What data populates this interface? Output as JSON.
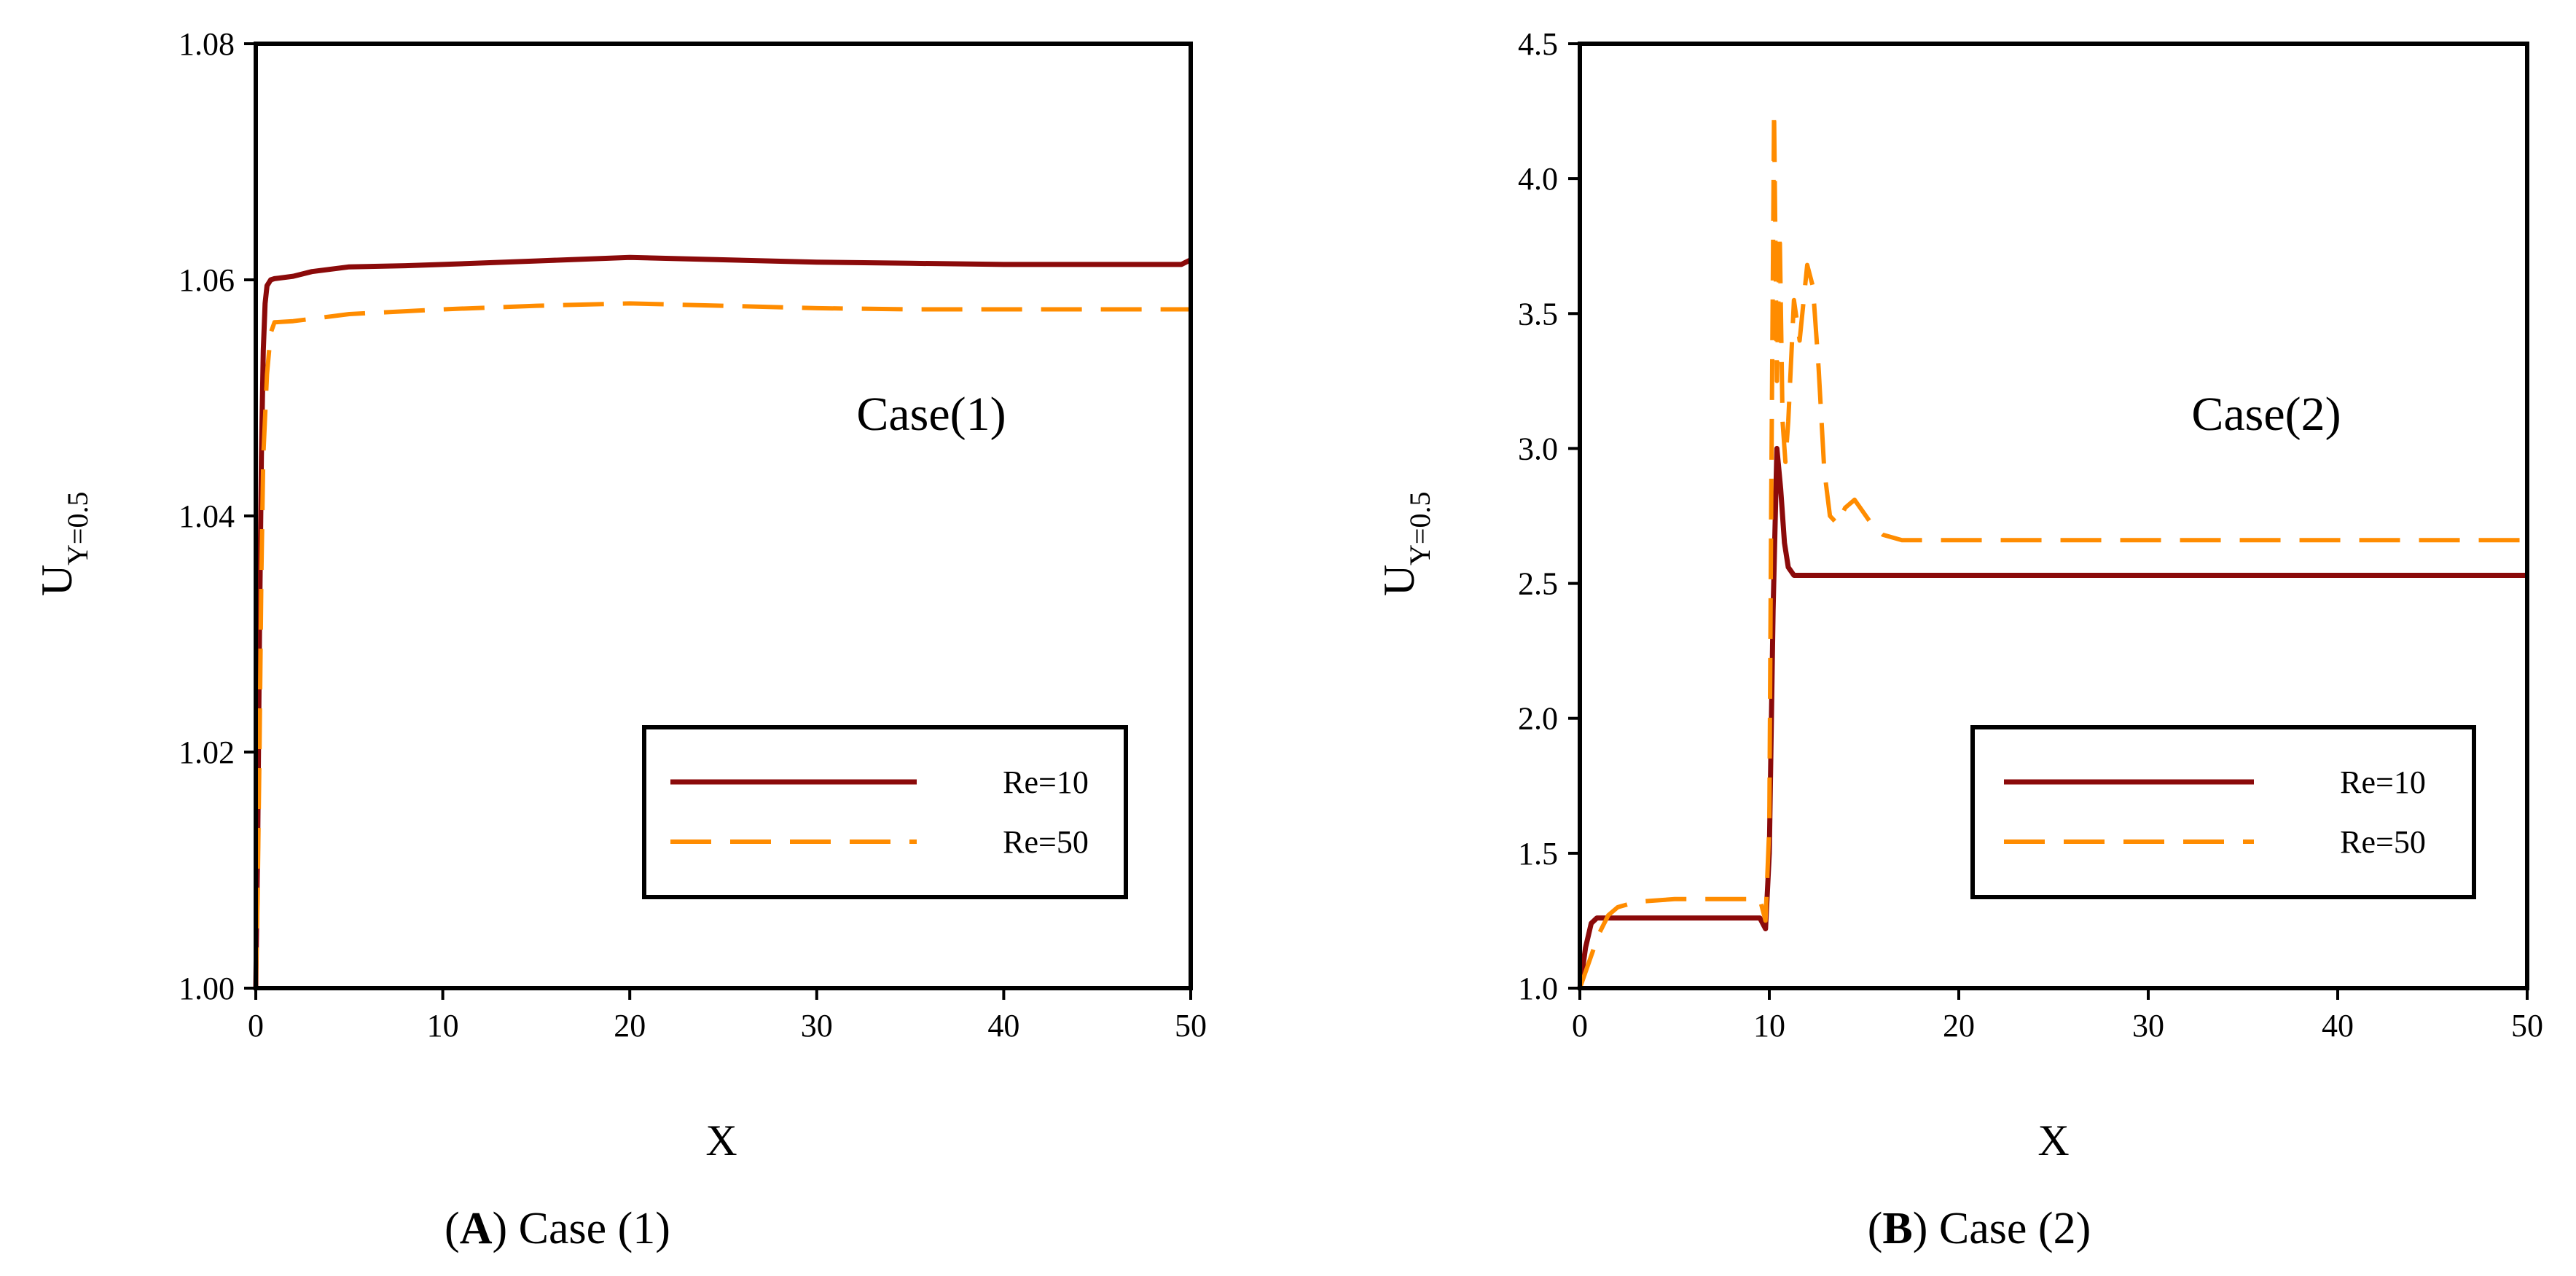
{
  "colors": {
    "re10": "#8B0A0A",
    "re50": "#FF8C00",
    "case_label": "#4A4AF0",
    "axis": "#000000"
  },
  "chart_data": [
    {
      "id": "A",
      "type": "line",
      "title": "",
      "case_label": "Case(1)",
      "xlabel": "X",
      "ylabel_main": "U",
      "ylabel_sub": "Y=0.5",
      "xlim": [
        0,
        50
      ],
      "ylim": [
        1.0,
        1.08
      ],
      "xticks": [
        "0",
        "10",
        "20",
        "30",
        "40",
        "50"
      ],
      "yticks": [
        "1.00",
        "1.02",
        "1.04",
        "1.06",
        "1.08"
      ],
      "caption": {
        "letter": "A",
        "open": "(",
        "close": ") Case (1)"
      },
      "legend": {
        "entries": [
          "Re=10",
          "Re=50"
        ],
        "position": "lower-right"
      },
      "series": [
        {
          "name": "Re=10",
          "style": "solid",
          "x": [
            0,
            0.1,
            0.2,
            0.3,
            0.4,
            0.5,
            0.6,
            0.8,
            1,
            2,
            3,
            5,
            8,
            10,
            15,
            20,
            25,
            30,
            35,
            40,
            45,
            49.5,
            50
          ],
          "y": [
            1.0,
            1.012,
            1.03,
            1.045,
            1.054,
            1.058,
            1.0595,
            1.06,
            1.0601,
            1.0603,
            1.0607,
            1.0611,
            1.0612,
            1.0613,
            1.0616,
            1.0619,
            1.0617,
            1.0615,
            1.0614,
            1.0613,
            1.0613,
            1.0613,
            1.0617
          ]
        },
        {
          "name": "Re=50",
          "style": "dashed",
          "x": [
            0,
            0.1,
            0.2,
            0.3,
            0.4,
            0.6,
            0.8,
            1,
            2,
            3,
            5,
            10,
            15,
            20,
            25,
            30,
            35,
            40,
            45,
            50
          ],
          "y": [
            1.0,
            1.008,
            1.02,
            1.035,
            1.045,
            1.052,
            1.0555,
            1.0564,
            1.0565,
            1.0567,
            1.0571,
            1.0575,
            1.0578,
            1.058,
            1.0578,
            1.0576,
            1.0575,
            1.0575,
            1.0575,
            1.0575
          ]
        }
      ]
    },
    {
      "id": "B",
      "type": "line",
      "title": "",
      "case_label": "Case(2)",
      "xlabel": "X",
      "ylabel_main": "U",
      "ylabel_sub": "Y=0.5",
      "xlim": [
        0,
        50
      ],
      "ylim": [
        1.0,
        4.5
      ],
      "xticks": [
        "0",
        "10",
        "20",
        "30",
        "40",
        "50"
      ],
      "yticks": [
        "1.0",
        "1.5",
        "2.0",
        "2.5",
        "3.0",
        "3.5",
        "4.0",
        "4.5"
      ],
      "caption": {
        "letter": "B",
        "open": "(",
        "close": ") Case (2)"
      },
      "legend": {
        "entries": [
          "Re=10",
          "Re=50"
        ],
        "position": "lower-right"
      },
      "series": [
        {
          "name": "Re=10",
          "style": "solid",
          "x": [
            0,
            0.3,
            0.6,
            0.9,
            1.2,
            2,
            5,
            8,
            9.5,
            9.8,
            10,
            10.2,
            10.4,
            10.6,
            10.8,
            11.0,
            11.3,
            50
          ],
          "y": [
            1.0,
            1.15,
            1.24,
            1.26,
            1.26,
            1.26,
            1.26,
            1.26,
            1.26,
            1.22,
            1.5,
            2.4,
            3.0,
            2.85,
            2.65,
            2.56,
            2.53,
            2.53
          ]
        },
        {
          "name": "Re=50",
          "style": "dashed",
          "x": [
            0,
            0.5,
            1,
            1.5,
            2,
            3,
            5,
            8,
            9.5,
            9.8,
            10,
            10.1,
            10.25,
            10.4,
            10.55,
            10.7,
            10.85,
            11.0,
            11.3,
            11.6,
            12.0,
            12.3,
            12.6,
            12.9,
            13.2,
            13.6,
            14.0,
            14.5,
            15.0,
            15.5,
            16.0,
            17.0,
            20,
            30,
            40,
            50
          ],
          "y": [
            1.0,
            1.1,
            1.2,
            1.27,
            1.3,
            1.32,
            1.33,
            1.33,
            1.33,
            1.25,
            1.6,
            2.8,
            4.25,
            3.25,
            3.8,
            3.1,
            2.95,
            3.1,
            3.55,
            3.4,
            3.68,
            3.6,
            3.3,
            2.92,
            2.75,
            2.72,
            2.78,
            2.81,
            2.76,
            2.71,
            2.68,
            2.66,
            2.66,
            2.66,
            2.66,
            2.66
          ]
        }
      ]
    }
  ]
}
